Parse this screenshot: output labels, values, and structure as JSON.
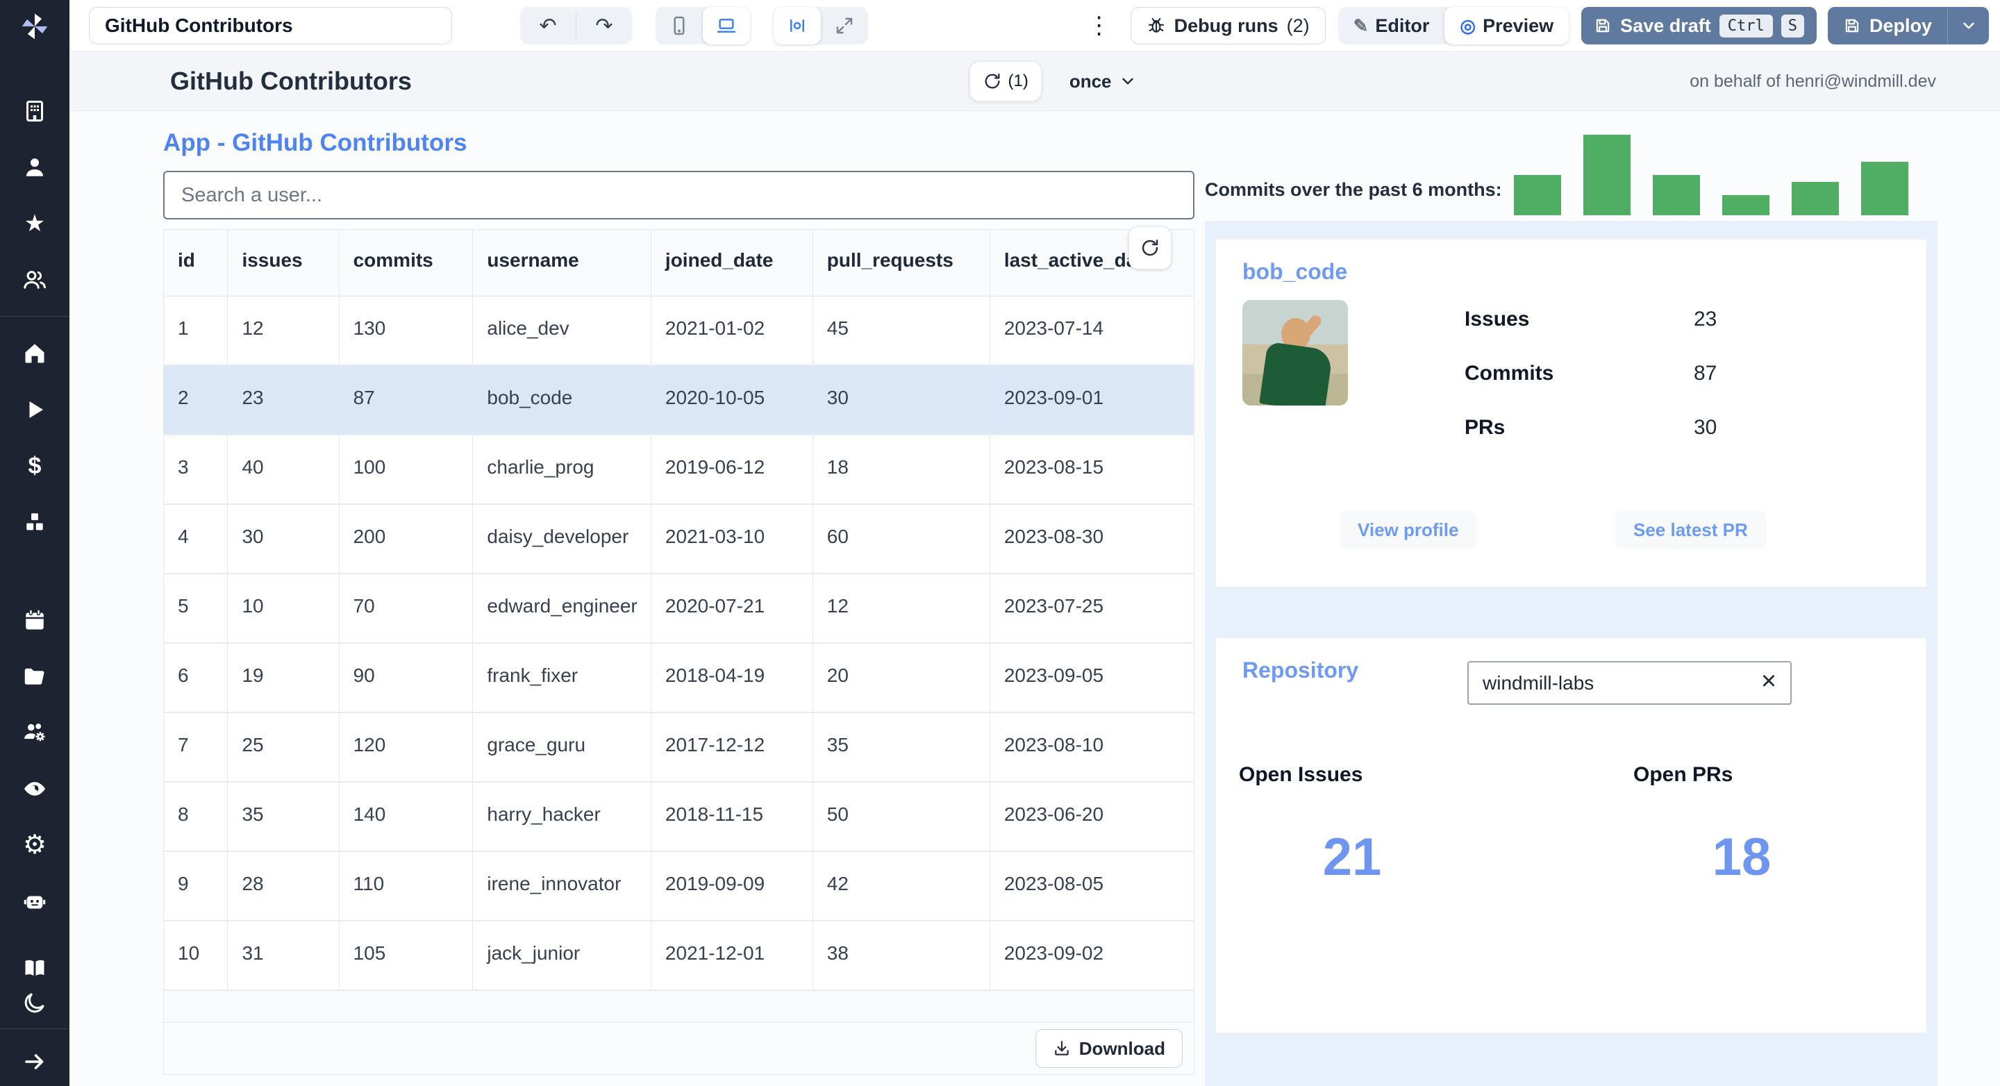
{
  "toolbar": {
    "app_title_value": "GitHub Contributors",
    "debug_runs_label": "Debug runs",
    "debug_runs_count": "(2)",
    "editor_label": "Editor",
    "preview_label": "Preview",
    "save_draft_label": "Save draft",
    "kbd_ctrl": "Ctrl",
    "kbd_s": "S",
    "deploy_label": "Deploy"
  },
  "header": {
    "title": "GitHub Contributors",
    "refresh_count": "(1)",
    "schedule_label": "once",
    "on_behalf": "on behalf of henri@windmill.dev"
  },
  "app": {
    "heading": "App - GitHub Contributors",
    "search_placeholder": "Search a user..."
  },
  "chart_data": {
    "type": "bar",
    "title": "Commits over the past 6 months:",
    "categories": [
      "",
      "",
      "",
      "",
      "",
      ""
    ],
    "values": [
      50,
      100,
      50,
      25,
      41,
      66
    ],
    "ylim": [
      0,
      100
    ],
    "grid": false,
    "legend": "none",
    "bar_color": "#4fae63",
    "note": "relative bar heights, no axis labels shown"
  },
  "table": {
    "columns": [
      "id",
      "issues",
      "commits",
      "username",
      "joined_date",
      "pull_requests",
      "last_active_date"
    ],
    "rows": [
      [
        1,
        12,
        130,
        "alice_dev",
        "2021-01-02",
        45,
        "2023-07-14"
      ],
      [
        2,
        23,
        87,
        "bob_code",
        "2020-10-05",
        30,
        "2023-09-01"
      ],
      [
        3,
        40,
        100,
        "charlie_prog",
        "2019-06-12",
        18,
        "2023-08-15"
      ],
      [
        4,
        30,
        200,
        "daisy_developer",
        "2021-03-10",
        60,
        "2023-08-30"
      ],
      [
        5,
        10,
        70,
        "edward_engineer",
        "2020-07-21",
        12,
        "2023-07-25"
      ],
      [
        6,
        19,
        90,
        "frank_fixer",
        "2018-04-19",
        20,
        "2023-09-05"
      ],
      [
        7,
        25,
        120,
        "grace_guru",
        "2017-12-12",
        35,
        "2023-08-10"
      ],
      [
        8,
        35,
        140,
        "harry_hacker",
        "2018-11-15",
        50,
        "2023-06-20"
      ],
      [
        9,
        28,
        110,
        "irene_innovator",
        "2019-09-09",
        42,
        "2023-08-05"
      ],
      [
        10,
        31,
        105,
        "jack_junior",
        "2021-12-01",
        38,
        "2023-09-02"
      ]
    ],
    "selected_id": 2,
    "download_label": "Download"
  },
  "user_card": {
    "title": "bob_code",
    "stats": [
      {
        "label": "Issues",
        "value": "23"
      },
      {
        "label": "Commits",
        "value": "87"
      },
      {
        "label": "PRs",
        "value": "30"
      }
    ],
    "buttons": [
      "View profile",
      "See latest PR"
    ]
  },
  "repo_card": {
    "title": "Repository",
    "input_value": "windmill-labs",
    "metrics": [
      {
        "label": "Open Issues",
        "value": "21"
      },
      {
        "label": "Open PRs",
        "value": "18"
      }
    ]
  },
  "colors": {
    "accent_blue": "#4e84f1",
    "accent_blue_light": "#6f9af3",
    "bar_green": "#4fae63",
    "toolbar_slate": "#5f7a9e",
    "selected_row": "#dbe7f7",
    "panel_blue": "#e8f1fb",
    "sidebar_dark": "#1d2330"
  }
}
